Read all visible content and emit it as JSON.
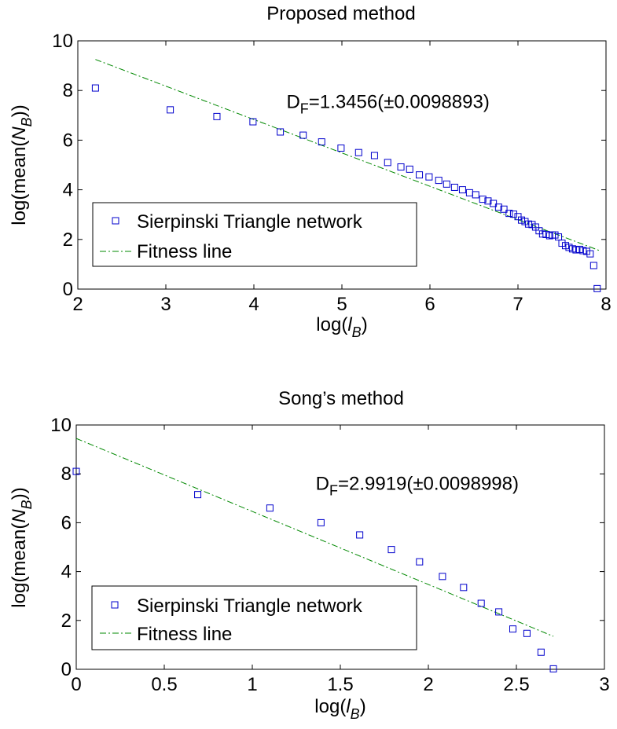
{
  "chart_data": [
    {
      "type": "scatter",
      "title": "Proposed method",
      "xlabel_prefix": "log(",
      "xlabel_var": "l",
      "xlabel_sub": "B",
      "xlabel_suffix": ")",
      "ylabel_prefix": "log(mean(",
      "ylabel_var": "N",
      "ylabel_sub": "B",
      "ylabel_suffix": "))",
      "xlim": [
        2,
        8
      ],
      "ylim": [
        0,
        10
      ],
      "xticks": [
        2,
        3,
        4,
        5,
        6,
        7,
        8
      ],
      "yticks": [
        0,
        2,
        4,
        6,
        8,
        10
      ],
      "xtick_labels": [
        "2",
        "3",
        "4",
        "5",
        "6",
        "7",
        "8"
      ],
      "ytick_labels": [
        "0",
        "2",
        "4",
        "6",
        "8",
        "10"
      ],
      "annotation_main": "D",
      "annotation_sub": "F",
      "annotation_rest": "=1.3456(±0.0098893)",
      "annotation_at": [
        4.37,
        7.3
      ],
      "legend_position": "lower-left",
      "series": [
        {
          "name": "Sierpinski Triangle network",
          "marker": "square",
          "color": "#0000cc",
          "points": [
            [
              2.2,
              8.1
            ],
            [
              3.05,
              7.22
            ],
            [
              3.58,
              6.95
            ],
            [
              3.99,
              6.74
            ],
            [
              4.3,
              6.33
            ],
            [
              4.56,
              6.2
            ],
            [
              4.77,
              5.93
            ],
            [
              4.99,
              5.68
            ],
            [
              5.19,
              5.5
            ],
            [
              5.37,
              5.38
            ],
            [
              5.52,
              5.1
            ],
            [
              5.67,
              4.92
            ],
            [
              5.77,
              4.83
            ],
            [
              5.88,
              4.6
            ],
            [
              5.99,
              4.52
            ],
            [
              6.1,
              4.38
            ],
            [
              6.19,
              4.23
            ],
            [
              6.28,
              4.1
            ],
            [
              6.37,
              4.0
            ],
            [
              6.45,
              3.88
            ],
            [
              6.52,
              3.8
            ],
            [
              6.6,
              3.62
            ],
            [
              6.66,
              3.55
            ],
            [
              6.72,
              3.45
            ],
            [
              6.78,
              3.3
            ],
            [
              6.84,
              3.22
            ],
            [
              6.9,
              3.05
            ],
            [
              6.95,
              3.02
            ],
            [
              7.0,
              2.92
            ],
            [
              7.04,
              2.78
            ],
            [
              7.08,
              2.72
            ],
            [
              7.12,
              2.62
            ],
            [
              7.16,
              2.6
            ],
            [
              7.2,
              2.5
            ],
            [
              7.24,
              2.35
            ],
            [
              7.28,
              2.22
            ],
            [
              7.32,
              2.2
            ],
            [
              7.36,
              2.15
            ],
            [
              7.39,
              2.18
            ],
            [
              7.42,
              2.18
            ],
            [
              7.46,
              2.1
            ],
            [
              7.5,
              1.85
            ],
            [
              7.54,
              1.75
            ],
            [
              7.58,
              1.68
            ],
            [
              7.62,
              1.62
            ],
            [
              7.66,
              1.58
            ],
            [
              7.7,
              1.6
            ],
            [
              7.74,
              1.55
            ],
            [
              7.78,
              1.52
            ],
            [
              7.82,
              1.42
            ],
            [
              7.86,
              0.95
            ],
            [
              7.9,
              0.02
            ]
          ]
        },
        {
          "name": "Fitness line",
          "line": "dash-dot",
          "color": "#008800",
          "x": [
            2.2,
            7.92
          ],
          "y": [
            9.25,
            1.56
          ]
        }
      ]
    },
    {
      "type": "scatter",
      "title": "Song’s method",
      "xlabel_prefix": "log(",
      "xlabel_var": "l",
      "xlabel_sub": "B",
      "xlabel_suffix": ")",
      "ylabel_prefix": "log(mean(",
      "ylabel_var": "N",
      "ylabel_sub": "B",
      "ylabel_suffix": "))",
      "xlim": [
        0,
        3
      ],
      "ylim": [
        0,
        10
      ],
      "xticks": [
        0,
        0.5,
        1,
        1.5,
        2,
        2.5,
        3
      ],
      "yticks": [
        0,
        2,
        4,
        6,
        8,
        10
      ],
      "xtick_labels": [
        "0",
        "0.5",
        "1",
        "1.5",
        "2",
        "2.5",
        "3"
      ],
      "ytick_labels": [
        "0",
        "2",
        "4",
        "6",
        "8",
        "10"
      ],
      "annotation_main": "D",
      "annotation_sub": "F",
      "annotation_rest": "=2.9919(±0.0098998)",
      "annotation_at": [
        1.36,
        7.35
      ],
      "legend_position": "lower-left",
      "series": [
        {
          "name": "Sierpinski Triangle network",
          "marker": "square",
          "color": "#0000cc",
          "points": [
            [
              0.0,
              8.1
            ],
            [
              0.69,
              7.15
            ],
            [
              1.1,
              6.6
            ],
            [
              1.39,
              6.0
            ],
            [
              1.61,
              5.5
            ],
            [
              1.79,
              4.9
            ],
            [
              1.95,
              4.4
            ],
            [
              2.08,
              3.8
            ],
            [
              2.2,
              3.35
            ],
            [
              2.3,
              2.7
            ],
            [
              2.4,
              2.35
            ],
            [
              2.48,
              1.65
            ],
            [
              2.56,
              1.47
            ],
            [
              2.64,
              0.7
            ],
            [
              2.71,
              0.02
            ]
          ]
        },
        {
          "name": "Fitness line",
          "line": "dash-dot",
          "color": "#008800",
          "x": [
            0.0,
            2.71
          ],
          "y": [
            9.45,
            1.35
          ]
        }
      ]
    }
  ]
}
